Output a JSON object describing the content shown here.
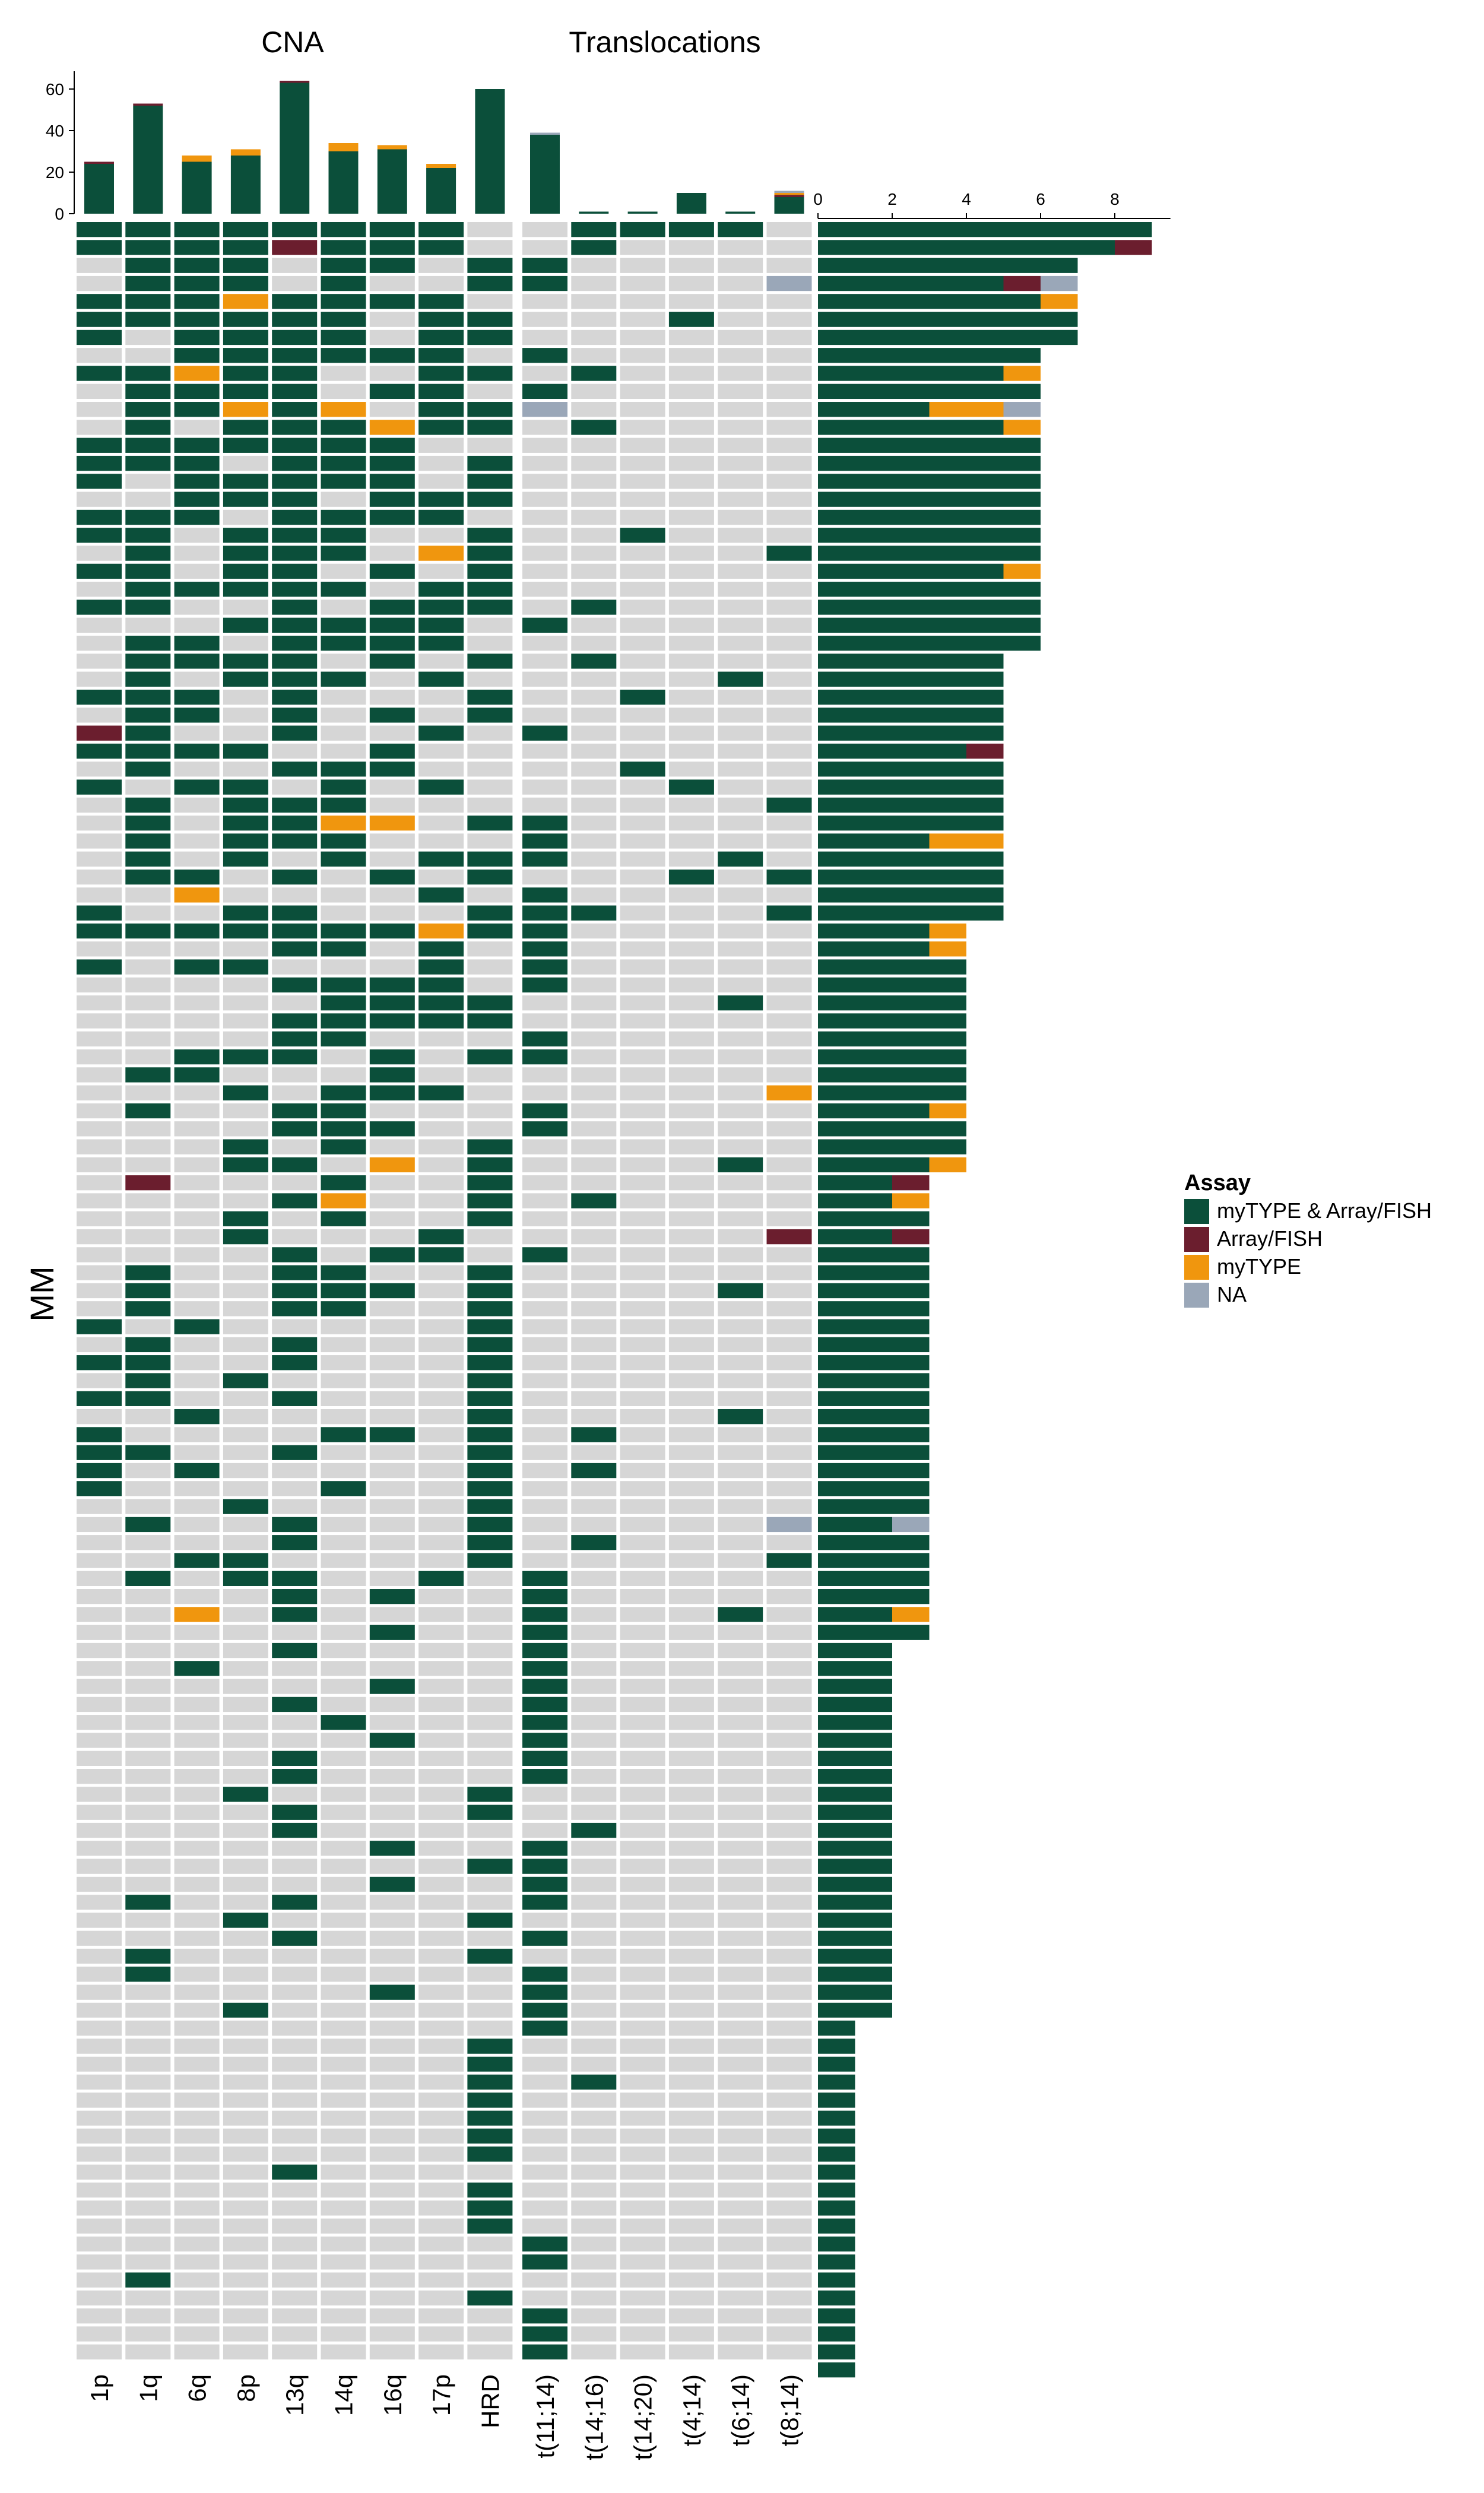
{
  "chart_data": {
    "type": "heatmap",
    "panel_titles": {
      "cna": "CNA",
      "translocations": "Translocations"
    },
    "ylabel": "MM",
    "columns_cna": [
      "1p",
      "1q",
      "6q",
      "8p",
      "13q",
      "14q",
      "16q",
      "17p",
      "HRD"
    ],
    "columns_translocations": [
      "t(11;14)",
      "t(14;16)",
      "t(14;20)",
      "t(4;14)",
      "t(6;14)",
      "t(8;14)"
    ],
    "legend": {
      "title": "Assay",
      "placement": "right",
      "entries": [
        {
          "code": "B",
          "label": "myTYPE & Array/FISH",
          "color": "#0b4f3a"
        },
        {
          "code": "A",
          "label": "Array/FISH",
          "color": "#6b1e2e"
        },
        {
          "code": "M",
          "label": "myTYPE",
          "color": "#f0960e"
        },
        {
          "code": "N",
          "label": "NA",
          "color": "#9aa7b8"
        }
      ]
    },
    "empty_color": "#d6d6d6",
    "top_bar": {
      "yticks": [
        0,
        20,
        40,
        60
      ],
      "ylim": [
        0,
        66
      ],
      "values": {
        "1p": {
          "B": 24,
          "A": 1,
          "M": 0,
          "N": 0
        },
        "1q": {
          "B": 52,
          "A": 1,
          "M": 0,
          "N": 0
        },
        "6q": {
          "B": 25,
          "A": 0,
          "M": 3,
          "N": 0
        },
        "8p": {
          "B": 28,
          "A": 0,
          "M": 3,
          "N": 0
        },
        "13q": {
          "B": 63,
          "A": 1,
          "M": 0,
          "N": 0
        },
        "14q": {
          "B": 30,
          "A": 0,
          "M": 4,
          "N": 0
        },
        "16q": {
          "B": 31,
          "A": 0,
          "M": 2,
          "N": 0
        },
        "17p": {
          "B": 22,
          "A": 0,
          "M": 2,
          "N": 0
        },
        "HRD": {
          "B": 60,
          "A": 0,
          "M": 0,
          "N": 0
        },
        "t(11;14)": {
          "B": 38,
          "A": 0,
          "M": 0,
          "N": 1
        },
        "t(14;16)": {
          "B": 1,
          "A": 0,
          "M": 0,
          "N": 0
        },
        "t(14;20)": {
          "B": 1,
          "A": 0,
          "M": 0,
          "N": 0
        },
        "t(4;14)": {
          "B": 10,
          "A": 0,
          "M": 0,
          "N": 0
        },
        "t(6;14)": {
          "B": 1,
          "A": 0,
          "M": 0,
          "N": 0
        },
        "t(8;14)": {
          "B": 8,
          "A": 1,
          "M": 1,
          "N": 1
        }
      }
    },
    "right_bar": {
      "xticks": [
        0,
        2,
        4,
        6,
        8
      ],
      "xlim": [
        0,
        9.5
      ],
      "values": [
        {
          "B": 9
        },
        {
          "B": 8,
          "A": 1
        },
        {
          "B": 7
        },
        {
          "B": 5,
          "A": 1,
          "N": 1
        },
        {
          "B": 6,
          "M": 1
        },
        {
          "B": 7
        },
        {
          "B": 7
        },
        {
          "B": 6
        },
        {
          "B": 5,
          "M": 1
        },
        {
          "B": 6
        },
        {
          "B": 3,
          "M": 2,
          "N": 1
        },
        {
          "B": 5,
          "M": 1
        },
        {
          "B": 6
        },
        {
          "B": 6
        },
        {
          "B": 6
        },
        {
          "B": 6
        },
        {
          "B": 6
        },
        {
          "B": 6
        },
        {
          "B": 6
        },
        {
          "B": 5,
          "M": 1
        },
        {
          "B": 6
        },
        {
          "B": 6
        },
        {
          "B": 6
        },
        {
          "B": 6
        },
        {
          "B": 5
        },
        {
          "B": 5
        },
        {
          "B": 5
        },
        {
          "B": 5
        },
        {
          "B": 5
        },
        {
          "B": 4,
          "A": 1
        },
        {
          "B": 5
        },
        {
          "B": 5
        },
        {
          "B": 5
        },
        {
          "B": 5
        },
        {
          "B": 3,
          "M": 2
        },
        {
          "B": 5
        },
        {
          "B": 5
        },
        {
          "B": 5
        },
        {
          "B": 5
        },
        {
          "B": 3,
          "M": 1
        },
        {
          "B": 3,
          "M": 1
        },
        {
          "B": 4
        },
        {
          "B": 4
        },
        {
          "B": 4
        },
        {
          "B": 4
        },
        {
          "B": 4
        },
        {
          "B": 4
        },
        {
          "B": 4
        },
        {
          "B": 4
        },
        {
          "B": 3,
          "M": 1
        },
        {
          "B": 4
        },
        {
          "B": 4
        },
        {
          "B": 3,
          "M": 1
        },
        {
          "B": 2,
          "A": 1
        },
        {
          "B": 2,
          "M": 1
        },
        {
          "B": 3
        },
        {
          "B": 2,
          "A": 1
        },
        {
          "B": 3
        },
        {
          "B": 3
        },
        {
          "B": 3
        },
        {
          "B": 3
        },
        {
          "B": 3
        },
        {
          "B": 3
        },
        {
          "B": 3
        },
        {
          "B": 3
        },
        {
          "B": 3
        },
        {
          "B": 3
        },
        {
          "B": 3
        },
        {
          "B": 3
        },
        {
          "B": 3
        },
        {
          "B": 3
        },
        {
          "B": 3
        },
        {
          "B": 2,
          "N": 1
        },
        {
          "B": 3
        },
        {
          "B": 3
        },
        {
          "B": 3
        },
        {
          "B": 3
        },
        {
          "B": 2,
          "M": 1
        },
        {
          "B": 3
        },
        {
          "B": 2
        },
        {
          "B": 2
        },
        {
          "B": 2
        },
        {
          "B": 2
        },
        {
          "B": 2
        },
        {
          "B": 2
        },
        {
          "B": 2
        },
        {
          "B": 2
        },
        {
          "B": 2
        },
        {
          "B": 2
        },
        {
          "B": 2
        },
        {
          "B": 2
        },
        {
          "B": 2
        },
        {
          "B": 2
        },
        {
          "B": 2
        },
        {
          "B": 2
        },
        {
          "B": 2
        },
        {
          "B": 2
        },
        {
          "B": 2
        },
        {
          "B": 2
        },
        {
          "B": 2
        },
        {
          "B": 1
        },
        {
          "B": 1
        },
        {
          "B": 1
        },
        {
          "B": 1
        },
        {
          "B": 1
        },
        {
          "B": 1
        },
        {
          "B": 1
        },
        {
          "B": 1
        },
        {
          "B": 1
        },
        {
          "B": 1
        },
        {
          "B": 1
        },
        {
          "B": 1
        },
        {
          "B": 1
        },
        {
          "B": 1
        },
        {
          "B": 1
        },
        {
          "B": 1
        },
        {
          "B": 1
        },
        {
          "B": 1
        },
        {
          "B": 1
        },
        {
          "B": 1
        }
      ]
    },
    "matrix": [
      "BBBBBBBB..BBBB..B",
      "BBBBABBB..B.....B",
      ".BBB.BB.BB......",
      ".BBB.B..BB....NA",
      "BBBMBBBB........",
      "BBBBBB.BB...B...",
      "B.BBBB.BB.......",
      "..BBBBBB.B......",
      "BBMBB..BB.B.....",
      ".BBBB.BB.B......",
      ".BBMBM.BBN......",
      ".B.BBBMBB.B.....",
      "BBBBBBB.........",
      "BBB.BBB.B.......",
      "B.BBBBB.B.......",
      "..BBB.BBB.......",
      "BBB.BBBB........",
      "BB.BBB..B..B....",
      ".B.BBB.MB.....B.",
      "BB.BB.B.B.......",
      ".BBBBB.BB.......",
      "BB..B.BBB.B.....",
      "...BBBBB.B......",
      ".BB.BBBB........",
      ".BBBB.B.B.B.....",
      ".B.BBB.B.....B..",
      "BBB.B...B..B....",
      ".BB.B.B.B.......",
      "AB..B..B.B......",
      "BBBB..B.........",
      ".B..BBB....B....",
      "B.BB.B.B....B...",
      ".B.BBB........B..",
      ".B.BBMM.BB......",
      ".B.BBB...B......",
      ".B.B.B.BBB...B..",
      ".BB.B.B.B...B.B.",
      "..M....B.B......",
      "B..BB...BBB...B.",
      "BBBBBBBMBB......",
      "....BB.B.B......",
      "B.BB...B.B......",
      "....BBBB.B......",
      ".....BBBB....B..",
      "....BBBBB.......",
      "....BB...B......",
      "..BBB.B.BB......",
      ".BB...B.........",
      "...B.BBB......M.",
      ".B..BB...B......",
      "....BBB..B......",
      "...B.B..B.......",
      "...BB.M.B....B..",
      ".A...B..B.......",
      "....BM..B.B.....",
      "...B.B..B.......",
      "...B...B......A.",
      "....B.BB.B......",
      ".B..BB..B.......",
      ".B..BBB.B....B..",
      ".B..BB..B.......",
      "B.B.....B.......",
      ".B..B...B.......",
      "BB..B...B.......",
      ".B.B....B.......",
      "BB..B...B.......",
      "..B.....B....B..",
      "B....BB.B.B.....",
      "BB..B...B.......",
      "B.B.....B.B.....",
      "B....B..B.......",
      "...B....B.......",
      ".B..B...B.....N.",
      "....B...B.B.....",
      "..BB....B.....B.",
      ".B.BB..B.B......",
      "....B.B..B......",
      "..M.B....B...B..",
      "......B..B......",
      "....B....B......",
      "..B......B......",
      "......B..B......",
      "....B....B......",
      ".....B...B......",
      "......B..B......",
      "....B....B......",
      "....B....B......",
      "...B....B.......",
      "....B...B.......",
      "....B.....B.....",
      "......B..B......",
      "........BB......",
      "......B..B......",
      ".B..B....B......",
      "...B....B.......",
      "....B....B......",
      ".B......B.......",
      ".B.......B......",
      "......B..B......",
      "...B.....B......",
      ".........B......",
      "........B.......",
      "........B.......",
      "........B.B.....",
      "........B.......",
      "........B.......",
      "........B.......",
      "........B.......",
      "....B...........",
      "........B.......",
      "........B.......",
      "........B.......",
      ".........B......",
      ".........B......",
      ".B..............",
      "........B.......",
      ".........B......",
      ".........B......",
      ".........B......"
    ]
  }
}
